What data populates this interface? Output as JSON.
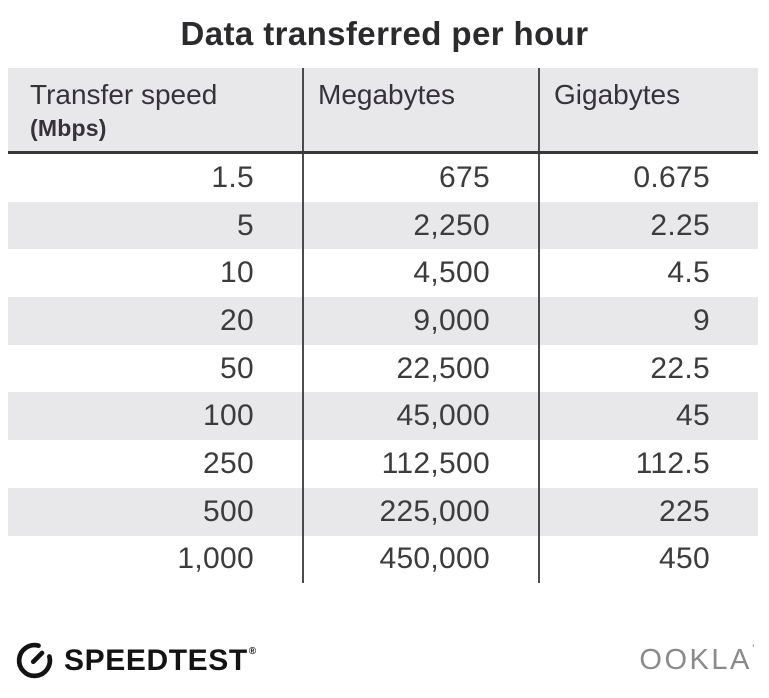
{
  "title": "Data transferred per hour",
  "table": {
    "columns": [
      {
        "label": "Transfer speed",
        "sublabel": "(Mbps)"
      },
      {
        "label": "Megabytes"
      },
      {
        "label": "Gigabytes"
      }
    ],
    "rows": [
      [
        "1.5",
        "675",
        "0.675"
      ],
      [
        "5",
        "2,250",
        "2.25"
      ],
      [
        "10",
        "4,500",
        "4.5"
      ],
      [
        "20",
        "9,000",
        "9"
      ],
      [
        "50",
        "22,500",
        "22.5"
      ],
      [
        "100",
        "45,000",
        "45"
      ],
      [
        "250",
        "112,500",
        "112.5"
      ],
      [
        "500",
        "225,000",
        "225"
      ],
      [
        "1,000",
        "450,000",
        "450"
      ]
    ]
  },
  "chart_data": {
    "type": "table",
    "title": "Data transferred per hour",
    "columns": [
      "Transfer speed (Mbps)",
      "Megabytes",
      "Gigabytes"
    ],
    "rows": [
      [
        1.5,
        675,
        0.675
      ],
      [
        5,
        2250,
        2.25
      ],
      [
        10,
        4500,
        4.5
      ],
      [
        20,
        9000,
        9
      ],
      [
        50,
        22500,
        22.5
      ],
      [
        100,
        45000,
        45
      ],
      [
        250,
        112500,
        112.5
      ],
      [
        500,
        225000,
        225
      ],
      [
        1000,
        450000,
        450
      ]
    ]
  },
  "footer": {
    "speedtest_label": "SPEEDTEST",
    "speedtest_trademark": "®",
    "ookla_label": "OOKLA",
    "ookla_trademark": "’"
  },
  "colors": {
    "stripe": "#e8e7ea",
    "header_bg": "#e8e7ea",
    "divider": "#4b4a4d",
    "header_underline": "#38373a",
    "title_text": "#2b2a2d",
    "body_text": "#3c3b3e",
    "speedtest_black": "#131313",
    "ookla_gray": "#8b898c"
  }
}
